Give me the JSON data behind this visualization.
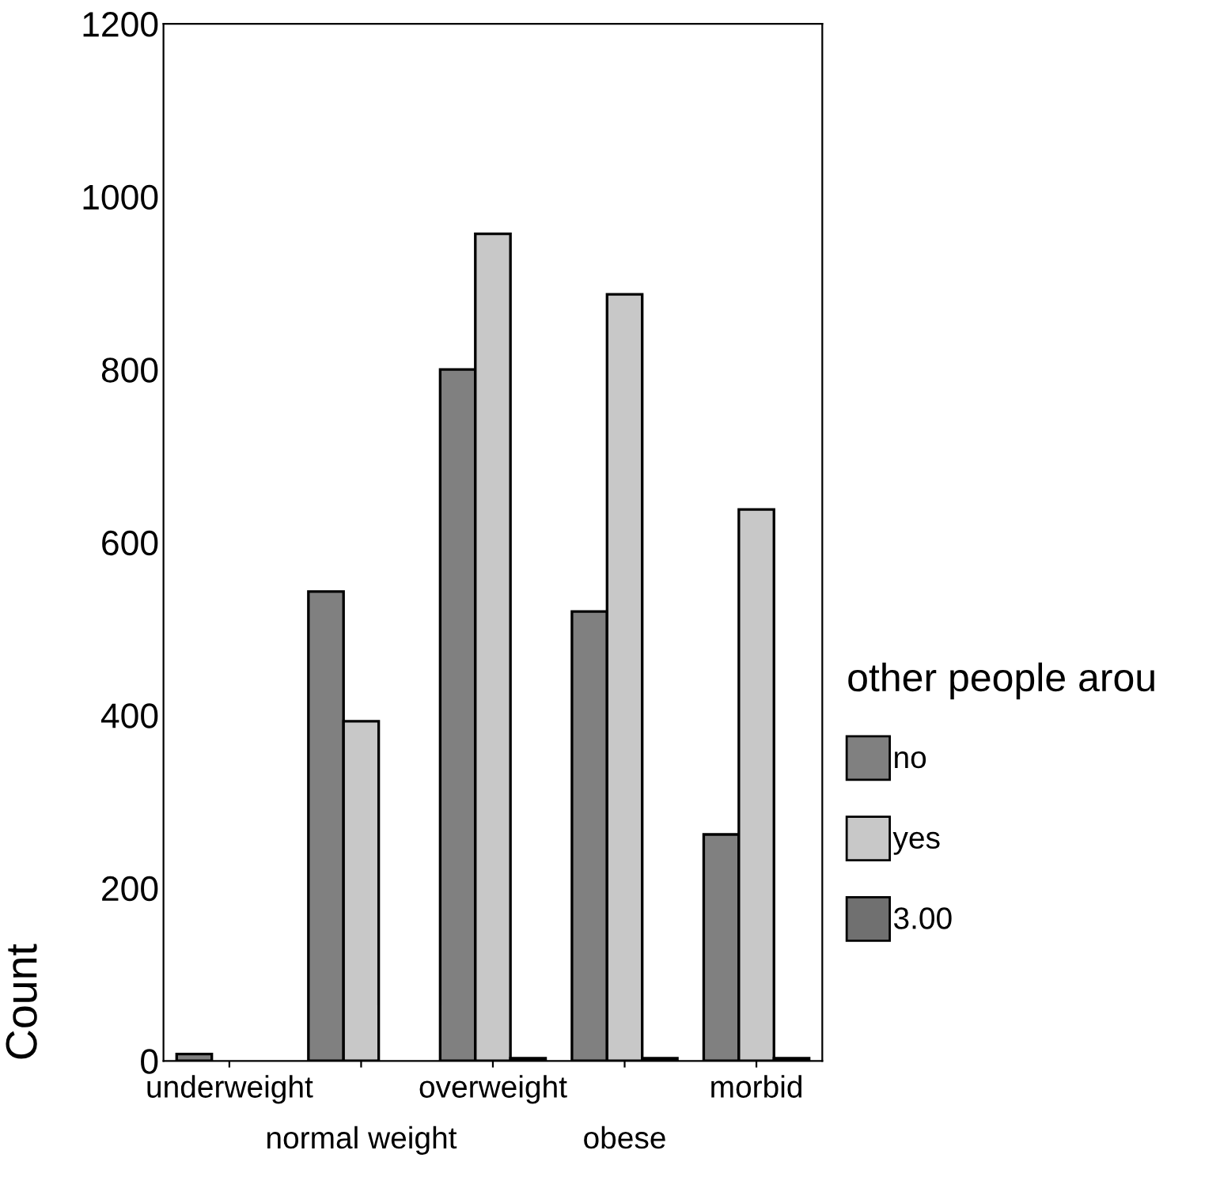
{
  "chart_data": {
    "type": "bar",
    "ylabel": "Count",
    "legend_title": "other people arou",
    "categories": [
      "underweight",
      "normal weight",
      "overweight",
      "obese",
      "morbid"
    ],
    "series": [
      {
        "name": "no",
        "color": "#808080",
        "values": [
          8,
          543,
          800,
          520,
          262
        ]
      },
      {
        "name": "yes",
        "color": "#c8c8c8",
        "values": [
          0,
          393,
          957,
          887,
          638
        ]
      },
      {
        "name": "3.00",
        "color": "#707070",
        "values": [
          0,
          0,
          3,
          3,
          3
        ]
      }
    ],
    "ylim": [
      0,
      1200
    ],
    "yticks": [
      0,
      200,
      400,
      600,
      800,
      1000,
      1200
    ],
    "grid": false,
    "legend": "right"
  }
}
